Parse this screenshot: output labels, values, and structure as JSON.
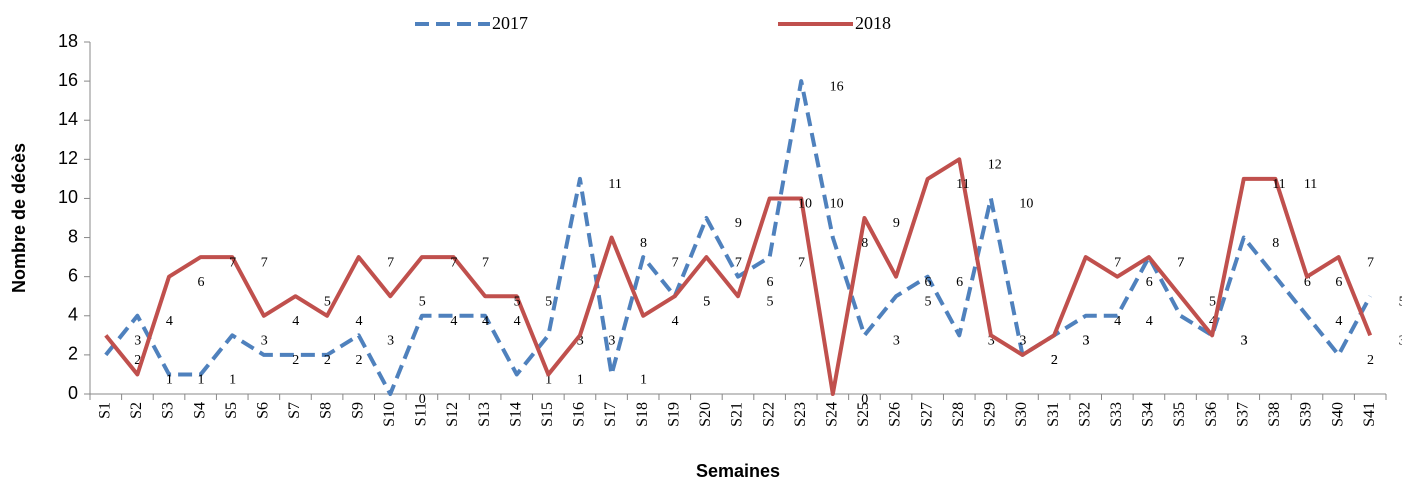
{
  "chart_data": {
    "type": "line",
    "x_label": "Semaines",
    "y_label": "Nombre de décès",
    "categories": [
      "S1",
      "S2",
      "S3",
      "S4",
      "S5",
      "S6",
      "S7",
      "S8",
      "S9",
      "S10",
      "S11",
      "S12",
      "S13",
      "S14",
      "S15",
      "S16",
      "S17",
      "S18",
      "S19",
      "S20",
      "S21",
      "S22",
      "S23",
      "S24",
      "S25",
      "S26",
      "S27",
      "S28",
      "S29",
      "S30",
      "S31",
      "S32",
      "S33",
      "S34",
      "S35",
      "S36",
      "S37",
      "S38",
      "S39",
      "S40",
      "S41"
    ],
    "series": [
      {
        "name": "2017",
        "color": "#4f81bd",
        "dashed": true,
        "values": [
          2,
          4,
          1,
          1,
          3,
          2,
          2,
          2,
          3,
          0,
          4,
          4,
          4,
          1,
          3,
          11,
          1,
          7,
          5,
          9,
          6,
          7,
          16,
          8,
          3,
          5,
          6,
          3,
          10,
          2,
          3,
          4,
          4,
          7,
          4,
          3,
          8,
          6,
          4,
          2,
          5
        ]
      },
      {
        "name": "2018",
        "color": "#c0504d",
        "dashed": false,
        "values": [
          3,
          1,
          6,
          7,
          7,
          4,
          5,
          4,
          7,
          5,
          7,
          7,
          5,
          5,
          1,
          3,
          8,
          4,
          5,
          7,
          5,
          10,
          10,
          0,
          9,
          6,
          11,
          12,
          3,
          2,
          3,
          7,
          6,
          7,
          5,
          3,
          11,
          11,
          6,
          7,
          3
        ]
      }
    ],
    "ylim": [
      0,
      18
    ],
    "yticks": [
      0,
      2,
      4,
      6,
      8,
      10,
      12,
      14,
      16,
      18
    ],
    "grid": false,
    "legend": "top"
  }
}
